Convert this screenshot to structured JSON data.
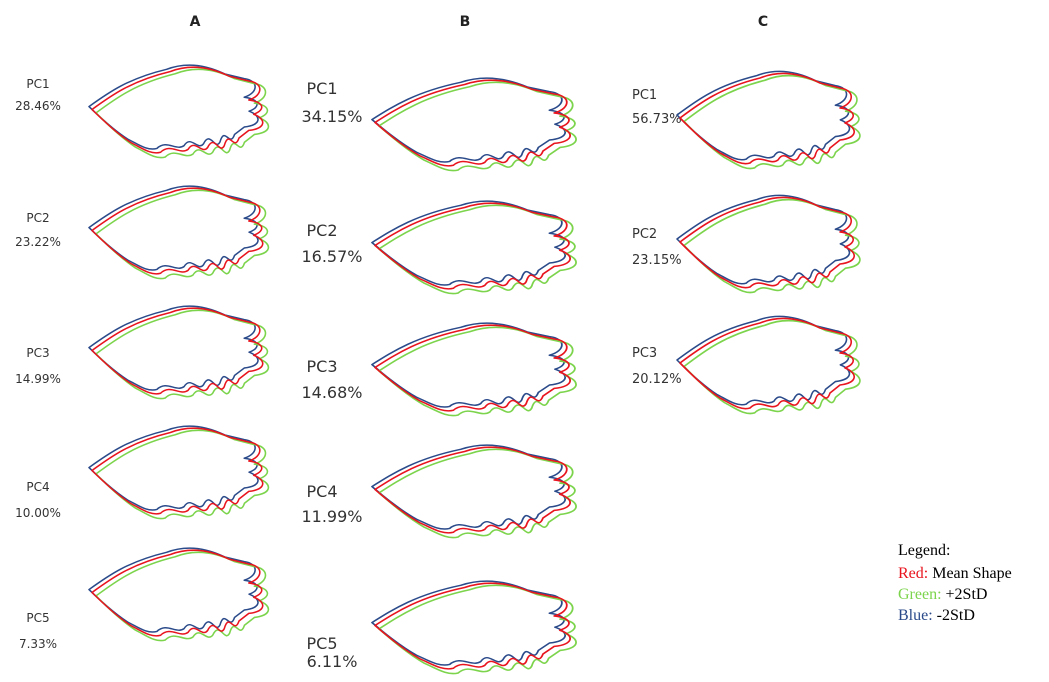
{
  "columns": [
    {
      "header": "A",
      "panels": [
        {
          "pc": "PC1",
          "percent": "28.46%"
        },
        {
          "pc": "PC2",
          "percent": "23.22%"
        },
        {
          "pc": "PC3",
          "percent": "14.99%"
        },
        {
          "pc": "PC4",
          "percent": "10.00%"
        },
        {
          "pc": "PC5",
          "percent": "7.33%"
        }
      ]
    },
    {
      "header": "B",
      "panels": [
        {
          "pc": "PC1",
          "percent": "34.15%"
        },
        {
          "pc": "PC2",
          "percent": "16.57%"
        },
        {
          "pc": "PC3",
          "percent": "14.68%"
        },
        {
          "pc": "PC4",
          "percent": "11.99%"
        },
        {
          "pc": "PC5",
          "percent": "6.11%"
        }
      ]
    },
    {
      "header": "C",
      "panels": [
        {
          "pc": "PC1",
          "percent": "56.73%"
        },
        {
          "pc": "PC2",
          "percent": "23.15%"
        },
        {
          "pc": "PC3",
          "percent": "20.12%"
        }
      ]
    }
  ],
  "legend": {
    "title": "Legend:",
    "items": [
      {
        "color_label": "Red:",
        "description": "Mean Shape",
        "color": "#e8141e"
      },
      {
        "color_label": "Green:",
        "description": "+2StD",
        "color": "#7cd44c"
      },
      {
        "color_label": "Blue:",
        "description": "-2StD",
        "color": "#2a4a8a"
      }
    ]
  }
}
